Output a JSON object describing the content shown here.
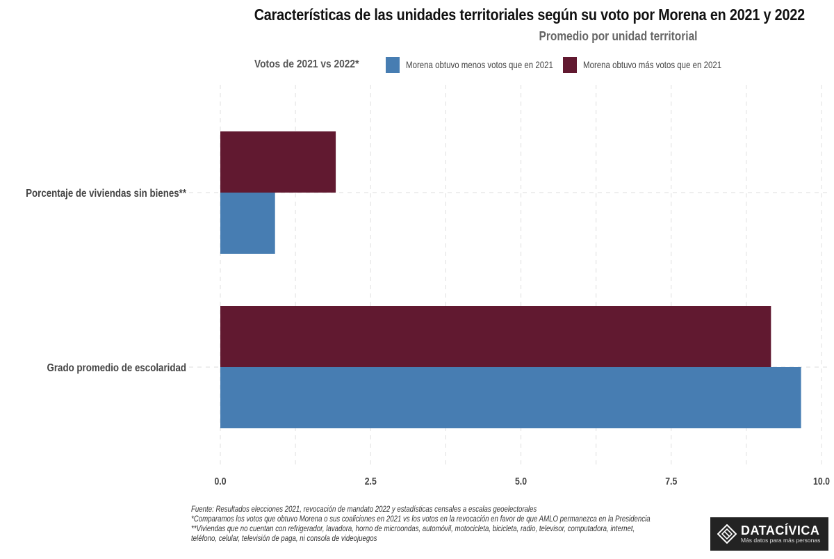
{
  "chart_data": {
    "type": "bar",
    "orientation": "horizontal",
    "title": "Características de las unidades territoriales según su voto por Morena en 2021 y 2022",
    "subtitle": "Promedio por unidad territorial",
    "xlabel": "",
    "ylabel": "",
    "xlim": [
      0,
      10
    ],
    "xticks": [
      "0.0",
      "2.5",
      "5.0",
      "7.5",
      "10.0"
    ],
    "xtick_values": [
      0,
      2.5,
      5,
      7.5,
      10
    ],
    "grid": true,
    "legend_position": "top",
    "legend_title": "Votos de 2021 vs 2022*",
    "categories": [
      "Porcentaje de viviendas sin bienes**",
      "Grado promedio de escolaridad"
    ],
    "series": [
      {
        "name": "Morena obtuvo más votos que en 2021",
        "color": "#611930",
        "values": [
          1.92,
          9.16
        ]
      },
      {
        "name": "Morena obtuvo menos votos que en 2021",
        "color": "#477DB2",
        "values": [
          0.91,
          9.66
        ]
      }
    ]
  },
  "legend": {
    "title": "Votos de 2021 vs 2022*",
    "items": [
      {
        "label": "Morena obtuvo menos votos que en 2021",
        "color": "#477DB2"
      },
      {
        "label": "Morena obtuvo más votos que en 2021",
        "color": "#611930"
      }
    ]
  },
  "footnotes": [
    "Fuente: Resultados elecciones 2021, revocación de mandato 2022 y estadísticas censales a escalas geoelectorales",
    " *Comparamos los votos que obtuvo Morena o sus coaliciones en 2021 vs los votos en la revocación en favor de que AMLO permanezca en la Presidencia",
    " **Viviendas que no cuentan con refrigerador, lavadora, horno de microondas, automóvil, motocicleta, bicicleta, radio, televisor, computadora, internet,",
    " teléfono, celular, televisión de paga, ni consola de videojuegos"
  ],
  "logo": {
    "brand": "DATACÍVICA",
    "tagline": "Más datos para más personas"
  }
}
